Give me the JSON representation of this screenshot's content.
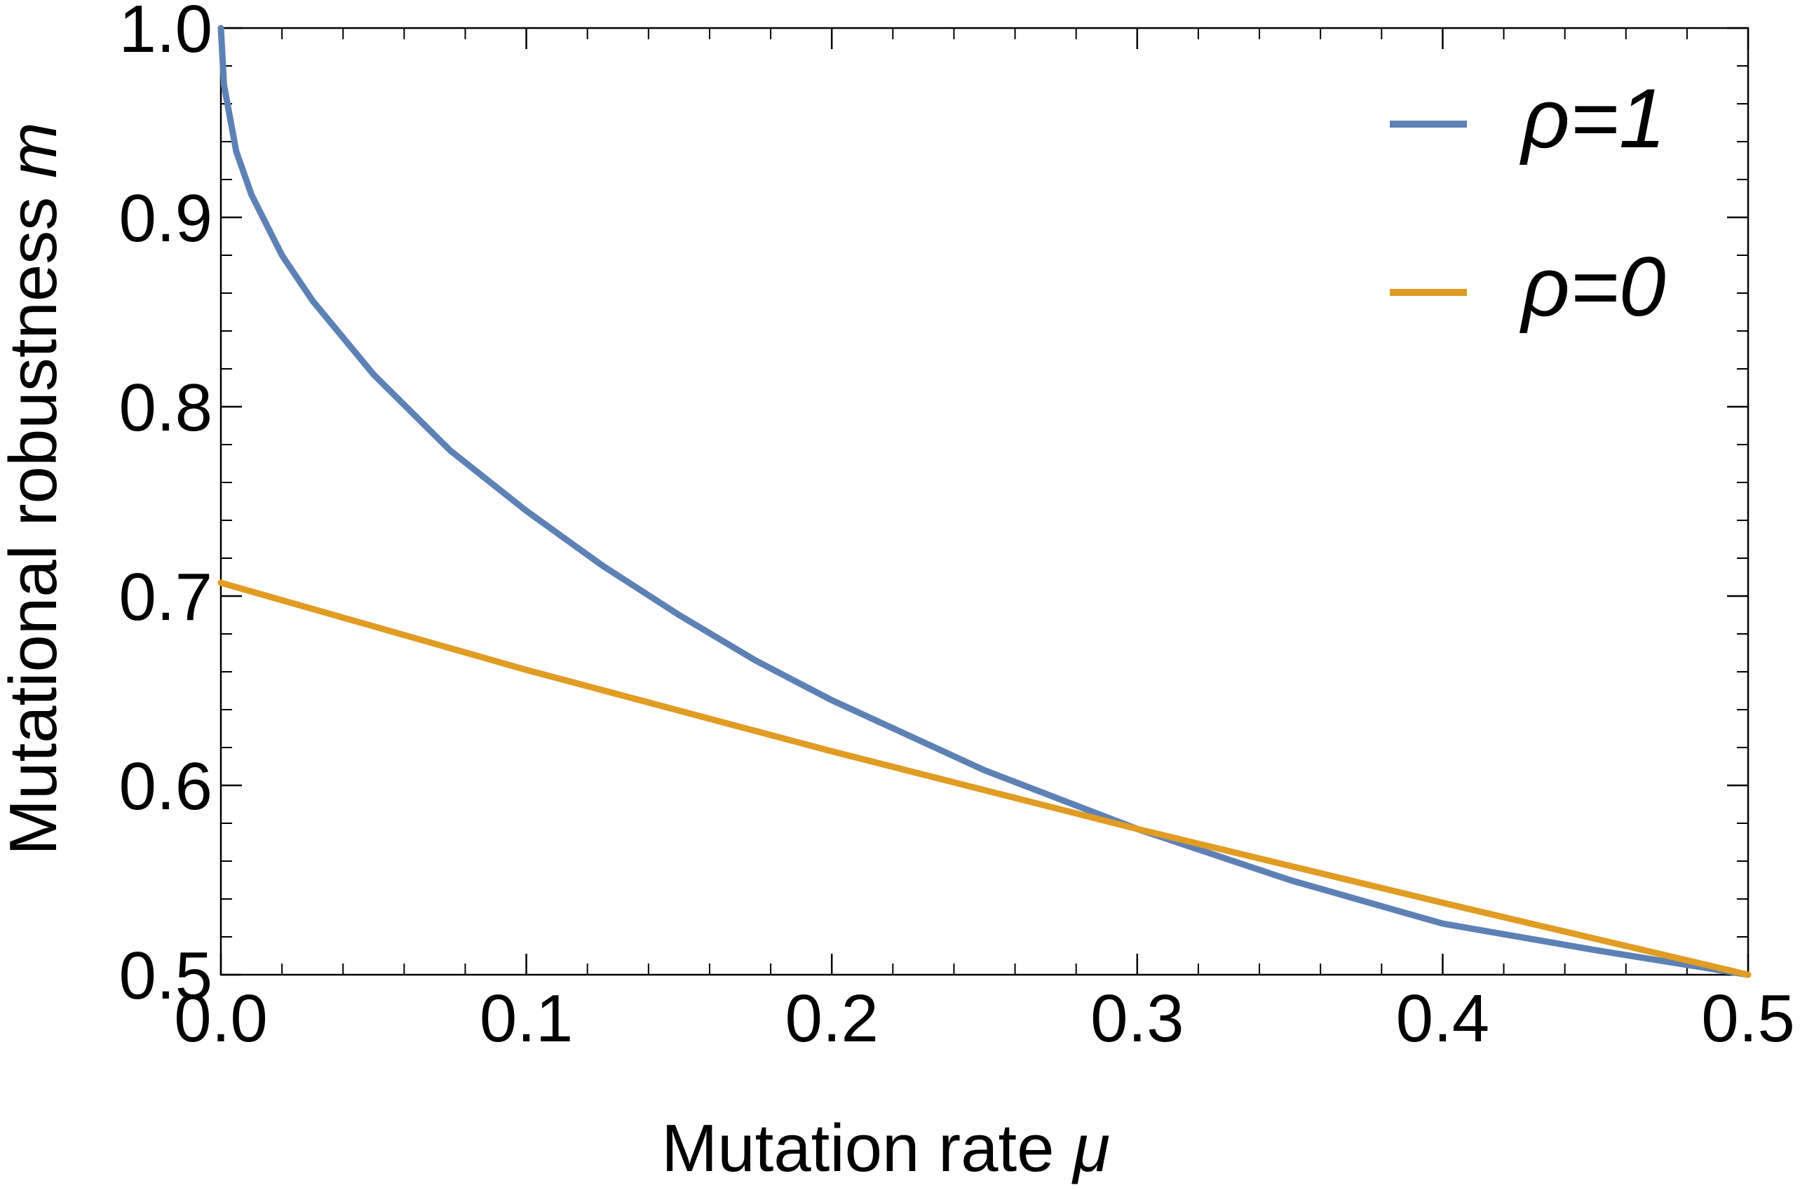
{
  "chart_data": {
    "type": "line",
    "title": "",
    "xlabel": "Mutation rate",
    "xlabel_symbol": "μ",
    "ylabel": "Mutational robustness",
    "ylabel_symbol": "m",
    "xlim": [
      0.0,
      0.5
    ],
    "ylim": [
      0.5,
      1.0
    ],
    "x_ticks": [
      0.0,
      0.1,
      0.2,
      0.3,
      0.4,
      0.5
    ],
    "x_tick_labels": [
      "0.0",
      "0.1",
      "0.2",
      "0.3",
      "0.4",
      "0.5"
    ],
    "y_ticks": [
      0.5,
      0.6,
      0.7,
      0.8,
      0.9,
      1.0
    ],
    "y_tick_labels": [
      "0.5",
      "0.6",
      "0.7",
      "0.8",
      "0.9",
      "1.0"
    ],
    "x_minor_step": 0.02,
    "y_minor_step": 0.02,
    "grid": false,
    "legend_position": "top-right",
    "series": [
      {
        "name": "ρ=1",
        "color": "#5e81b5",
        "x": [
          0.0,
          0.001,
          0.005,
          0.01,
          0.02,
          0.03,
          0.05,
          0.075,
          0.1,
          0.125,
          0.15,
          0.175,
          0.2,
          0.25,
          0.3,
          0.35,
          0.4,
          0.45,
          0.5
        ],
        "y": [
          1.0,
          0.97,
          0.935,
          0.912,
          0.88,
          0.856,
          0.817,
          0.777,
          0.745,
          0.716,
          0.69,
          0.666,
          0.645,
          0.608,
          0.577,
          0.55,
          0.527,
          0.513,
          0.5
        ]
      },
      {
        "name": "ρ=0",
        "color": "#e19c24",
        "x": [
          0.0,
          0.1,
          0.2,
          0.3,
          0.4,
          0.5
        ],
        "y": [
          0.707,
          0.661,
          0.618,
          0.577,
          0.538,
          0.5
        ]
      }
    ]
  }
}
